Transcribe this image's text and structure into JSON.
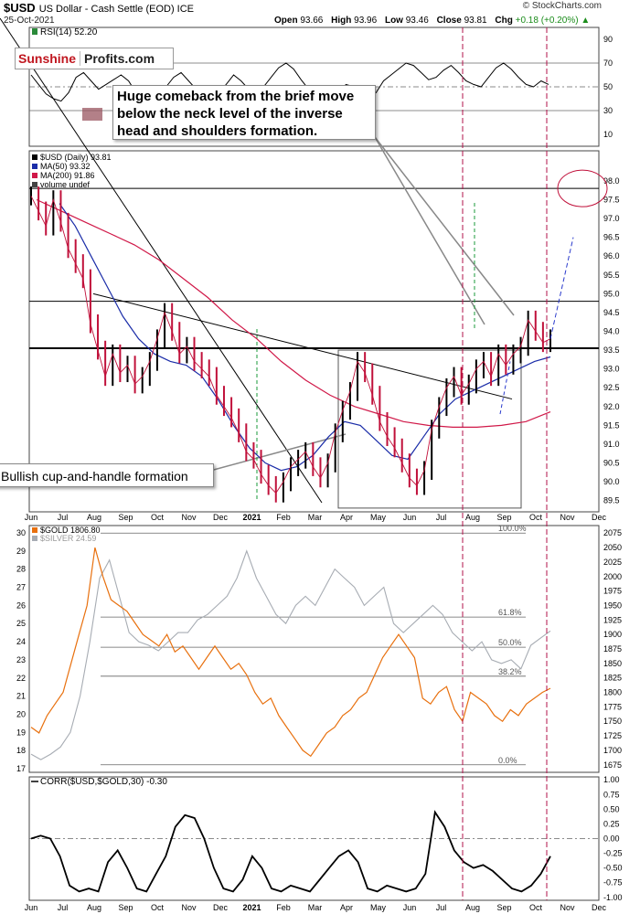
{
  "header": {
    "symbol": "$USD",
    "description": "US Dollar - Cash Settle (EOD) ICE",
    "date": "25-Oct-2021",
    "open_label": "Open",
    "open": "93.66",
    "high_label": "High",
    "high": "93.96",
    "low_label": "Low",
    "low": "93.46",
    "close_label": "Close",
    "close": "93.81",
    "chg_label": "Chg",
    "chg": "+0.18 (+0.20%)",
    "credit": "© StockCharts.com"
  },
  "logo": {
    "part1": "Sunshine",
    "part2": "Profits.com"
  },
  "annotations": {
    "comeback": "Huge comeback from the brief move below the neck level of the inverse head and shoulders formation.",
    "cup": "Bullish cup-and-handle formation"
  },
  "colors": {
    "price_up": "#000000",
    "price_down": "#c0103a",
    "ma50": "#1a2ca8",
    "ma200": "#d01848",
    "gold": "#e8700e",
    "silver": "#a7acb3",
    "marker": "#b0104a",
    "dashed_green": "#1a9a3a",
    "chg_positive": "#1a8c1a"
  },
  "chart_data": [
    {
      "panel": "rsi",
      "type": "line",
      "label": "RSI(14) 52.20",
      "ylim": [
        0,
        100
      ],
      "yticks": [
        10,
        30,
        50,
        70,
        90
      ],
      "levels": [
        30,
        50,
        70
      ],
      "series": [
        {
          "name": "RSI(14)",
          "values": [
            60,
            52,
            44,
            40,
            38,
            45,
            58,
            62,
            55,
            48,
            52,
            56,
            60,
            55,
            45,
            40,
            35,
            42,
            50,
            58,
            62,
            55,
            48,
            44,
            40,
            45,
            52,
            60,
            55,
            48,
            45,
            50,
            58,
            66,
            70,
            65,
            56,
            48,
            44,
            42,
            40,
            46,
            52,
            50,
            48,
            46,
            45,
            55,
            60,
            65,
            70,
            68,
            62,
            56,
            58,
            64,
            68,
            62,
            55,
            52,
            50,
            58,
            66,
            70,
            65,
            58,
            52,
            50,
            55,
            52
          ]
        }
      ]
    },
    {
      "panel": "usd",
      "type": "line",
      "legend": [
        "$USD (Daily) 93.81",
        "MA(50) 93.32",
        "MA(200) 91.86",
        "volume undef"
      ],
      "ylim": [
        89.2,
        98.8
      ],
      "yticks": [
        89.5,
        90.0,
        90.5,
        91.0,
        91.5,
        92.0,
        92.5,
        93.0,
        93.5,
        94.0,
        94.5,
        95.0,
        95.5,
        96.0,
        96.5,
        97.0,
        97.5,
        98.0
      ],
      "xticks": [
        "Jun",
        "Jul",
        "Aug",
        "Sep",
        "Oct",
        "Nov",
        "Dec",
        "2021",
        "Feb",
        "Mar",
        "Apr",
        "May",
        "Jun",
        "Jul",
        "Aug",
        "Sep",
        "Oct",
        "Nov",
        "Dec"
      ],
      "horizontal_levels": [
        97.8,
        94.8,
        93.55
      ],
      "series": [
        {
          "name": "$USD",
          "values": [
            97.6,
            97.2,
            96.8,
            97.5,
            96.9,
            96.2,
            95.8,
            95.4,
            94.2,
            93.5,
            92.8,
            93.4,
            92.9,
            93.1,
            92.6,
            92.8,
            93.2,
            93.8,
            94.5,
            94.0,
            93.4,
            93.6,
            93.2,
            93.0,
            92.8,
            92.3,
            92.0,
            91.7,
            91.3,
            90.8,
            90.6,
            90.2,
            89.9,
            89.7,
            90.0,
            90.4,
            90.6,
            90.8,
            90.4,
            90.1,
            90.5,
            91.3,
            91.9,
            92.4,
            93.2,
            92.9,
            92.3,
            91.6,
            91.2,
            90.9,
            90.5,
            90.1,
            89.9,
            90.3,
            91.4,
            92.0,
            92.5,
            92.8,
            92.3,
            92.6,
            93.0,
            93.2,
            92.8,
            93.4,
            93.1,
            93.4,
            93.6,
            94.3,
            94.0,
            93.7,
            93.8
          ]
        },
        {
          "name": "MA(50)",
          "values": [
            97.4,
            96.8,
            96.0,
            95.2,
            94.4,
            93.8,
            93.4,
            93.2,
            93.1,
            92.8,
            92.2,
            91.5,
            90.9,
            90.5,
            90.3,
            90.4,
            90.7,
            91.2,
            91.6,
            91.5,
            91.1,
            90.7,
            90.6,
            91.2,
            91.8,
            92.2,
            92.4,
            92.6,
            92.8,
            93.0,
            93.2,
            93.32
          ]
        },
        {
          "name": "MA(200)",
          "values": [
            97.5,
            97.2,
            96.9,
            96.6,
            96.3,
            95.9,
            95.4,
            94.9,
            94.3,
            93.8,
            93.2,
            92.7,
            92.3,
            92.0,
            91.8,
            91.6,
            91.5,
            91.45,
            91.45,
            91.5,
            91.6,
            91.86
          ]
        }
      ]
    },
    {
      "panel": "metals",
      "type": "line",
      "legend": [
        "$GOLD 1806.80",
        "$SILVER 24.59"
      ],
      "ylim_left": [
        16.8,
        30.4
      ],
      "ylim_right": [
        1662,
        2088
      ],
      "yticks_left": [
        17,
        18,
        19,
        20,
        21,
        22,
        23,
        24,
        25,
        26,
        27,
        28,
        29,
        30
      ],
      "yticks_right": [
        1675,
        1700,
        1725,
        1750,
        1775,
        1800,
        1825,
        1850,
        1875,
        1900,
        1925,
        1950,
        1975,
        2000,
        2025,
        2050,
        2075
      ],
      "fib_levels": [
        "100.0%",
        "61.8%",
        "50.0%",
        "38.2%",
        "0.0%"
      ],
      "series": [
        {
          "name": "$GOLD",
          "values": [
            1740,
            1730,
            1760,
            1780,
            1800,
            1850,
            1900,
            1950,
            2050,
            2000,
            1960,
            1950,
            1940,
            1920,
            1900,
            1890,
            1880,
            1900,
            1870,
            1880,
            1860,
            1840,
            1860,
            1880,
            1860,
            1840,
            1850,
            1830,
            1800,
            1780,
            1790,
            1760,
            1740,
            1720,
            1700,
            1690,
            1710,
            1730,
            1740,
            1760,
            1770,
            1790,
            1800,
            1830,
            1860,
            1880,
            1900,
            1880,
            1860,
            1790,
            1780,
            1800,
            1810,
            1770,
            1750,
            1800,
            1790,
            1780,
            1760,
            1750,
            1770,
            1760,
            1780,
            1790,
            1800,
            1807
          ]
        },
        {
          "name": "$SILVER",
          "values": [
            17.8,
            17.5,
            17.8,
            18.2,
            19.0,
            21.0,
            24.0,
            27.5,
            28.5,
            26.5,
            24.5,
            24.0,
            23.8,
            23.5,
            24.0,
            24.5,
            24.5,
            25.2,
            25.5,
            26.0,
            26.5,
            27.5,
            29.0,
            27.5,
            26.5,
            25.5,
            25.0,
            26.0,
            26.5,
            26.0,
            27.0,
            28.0,
            27.5,
            27.0,
            26.0,
            26.5,
            27.0,
            25.0,
            24.5,
            25.0,
            25.5,
            26.0,
            25.5,
            24.5,
            24.0,
            23.5,
            24.0,
            23.0,
            22.8,
            23.0,
            22.5,
            23.8,
            24.2,
            24.59
          ]
        }
      ]
    },
    {
      "panel": "corr",
      "type": "line",
      "label": "CORR($USD,$GOLD,30) -0.30",
      "ylim": [
        -1.05,
        1.05
      ],
      "yticks": [
        -1.0,
        -0.75,
        -0.5,
        -0.25,
        0.0,
        0.25,
        0.5,
        0.75,
        1.0
      ],
      "xticks": [
        "Jun",
        "Jul",
        "Aug",
        "Sep",
        "Oct",
        "Nov",
        "Dec",
        "2021",
        "Feb",
        "Mar",
        "Apr",
        "May",
        "Jun",
        "Jul",
        "Aug",
        "Sep",
        "Oct",
        "Nov",
        "Dec"
      ],
      "series": [
        {
          "name": "CORR",
          "values": [
            0.0,
            0.05,
            0.0,
            -0.3,
            -0.8,
            -0.9,
            -0.85,
            -0.9,
            -0.4,
            -0.2,
            -0.5,
            -0.85,
            -0.9,
            -0.6,
            -0.3,
            0.2,
            0.4,
            0.35,
            0.0,
            -0.5,
            -0.85,
            -0.9,
            -0.7,
            -0.3,
            -0.5,
            -0.85,
            -0.9,
            -0.8,
            -0.85,
            -0.9,
            -0.7,
            -0.5,
            -0.3,
            -0.2,
            -0.4,
            -0.85,
            -0.9,
            -0.8,
            -0.85,
            -0.9,
            -0.85,
            -0.6,
            0.45,
            0.2,
            -0.2,
            -0.4,
            -0.5,
            -0.45,
            -0.55,
            -0.7,
            -0.85,
            -0.9,
            -0.8,
            -0.6,
            -0.3
          ]
        }
      ]
    }
  ]
}
